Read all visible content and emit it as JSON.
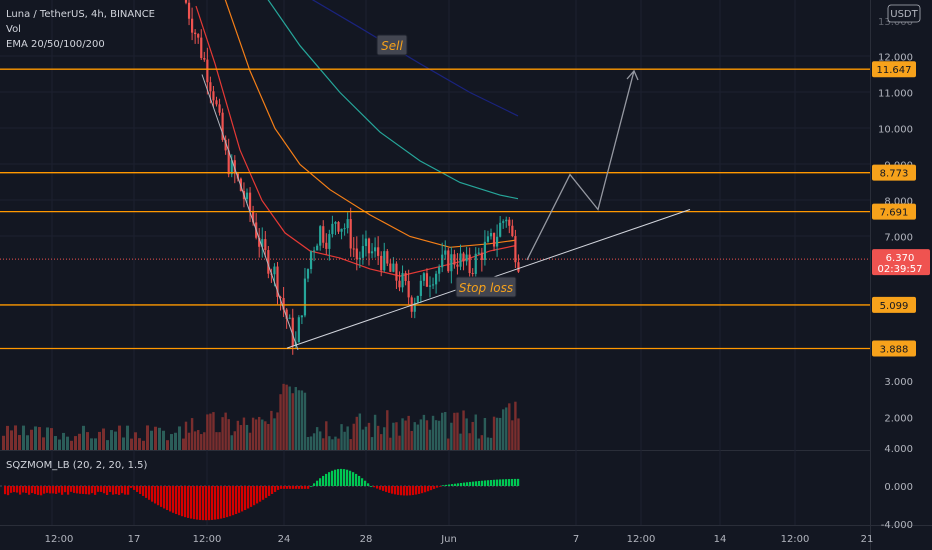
{
  "header": {
    "symbol_line": "Luna / TetherUS, 4h, BINANCE",
    "vol_label": "Vol",
    "ema_label": "EMA 20/50/100/200",
    "indicator_label": "SQZMOM_LB (20, 2, 20, 1.5)"
  },
  "currency": "USDT",
  "price_axis": {
    "ticks": [
      "12.000",
      "11.000",
      "10.000",
      "9.000",
      "8.000",
      "7.000",
      "3.000",
      "2.000"
    ],
    "cropped_top_tick": "13.000"
  },
  "level_tags": [
    "11.647",
    "8.773",
    "7.691",
    "5.099",
    "3.888"
  ],
  "current": {
    "price": "6.370",
    "countdown": "02:39:57"
  },
  "oscillator_axis": {
    "ticks": [
      "4.000",
      "0.000",
      "-4.000"
    ]
  },
  "time_axis": {
    "labels": [
      "12:00",
      "17",
      "12:00",
      "24",
      "28",
      "Jun",
      "7",
      "12:00",
      "14",
      "12:00",
      "21"
    ]
  },
  "annotations": {
    "sell": "Sell",
    "stop_loss": "Stop loss"
  },
  "colors": {
    "background": "#131722",
    "up": "#26a69a",
    "down": "#ef5350",
    "level": "#ff9800",
    "ema20": "#e53935",
    "ema50": "#f57f17",
    "ema100": "#26a69a",
    "ema200": "#1a237e",
    "projection": "#b2b5be",
    "squeeze_up": "#00c853",
    "squeeze_down": "#d50000",
    "tag_fill": "#f7a21b"
  },
  "chart_data": {
    "type": "candlestick",
    "instrument": "Luna / TetherUS",
    "timeframe": "4h",
    "exchange": "BINANCE",
    "horizontal_levels": [
      11.647,
      8.773,
      7.691,
      5.099,
      3.888
    ],
    "last_price": 6.37,
    "trendline": {
      "from": [
        3.9,
        "24"
      ],
      "to": [
        7.75,
        "after Jun"
      ]
    },
    "price_ticks": [
      12,
      11,
      10,
      9,
      8,
      7
    ],
    "volume_ticks": [
      3,
      2
    ],
    "oscillator_ticks": [
      4,
      0,
      -4
    ],
    "x_ticks": [
      "12:00",
      "17",
      "12:00",
      "24",
      "28",
      "Jun",
      "7",
      "12:00",
      "14",
      "12:00",
      "21"
    ]
  }
}
